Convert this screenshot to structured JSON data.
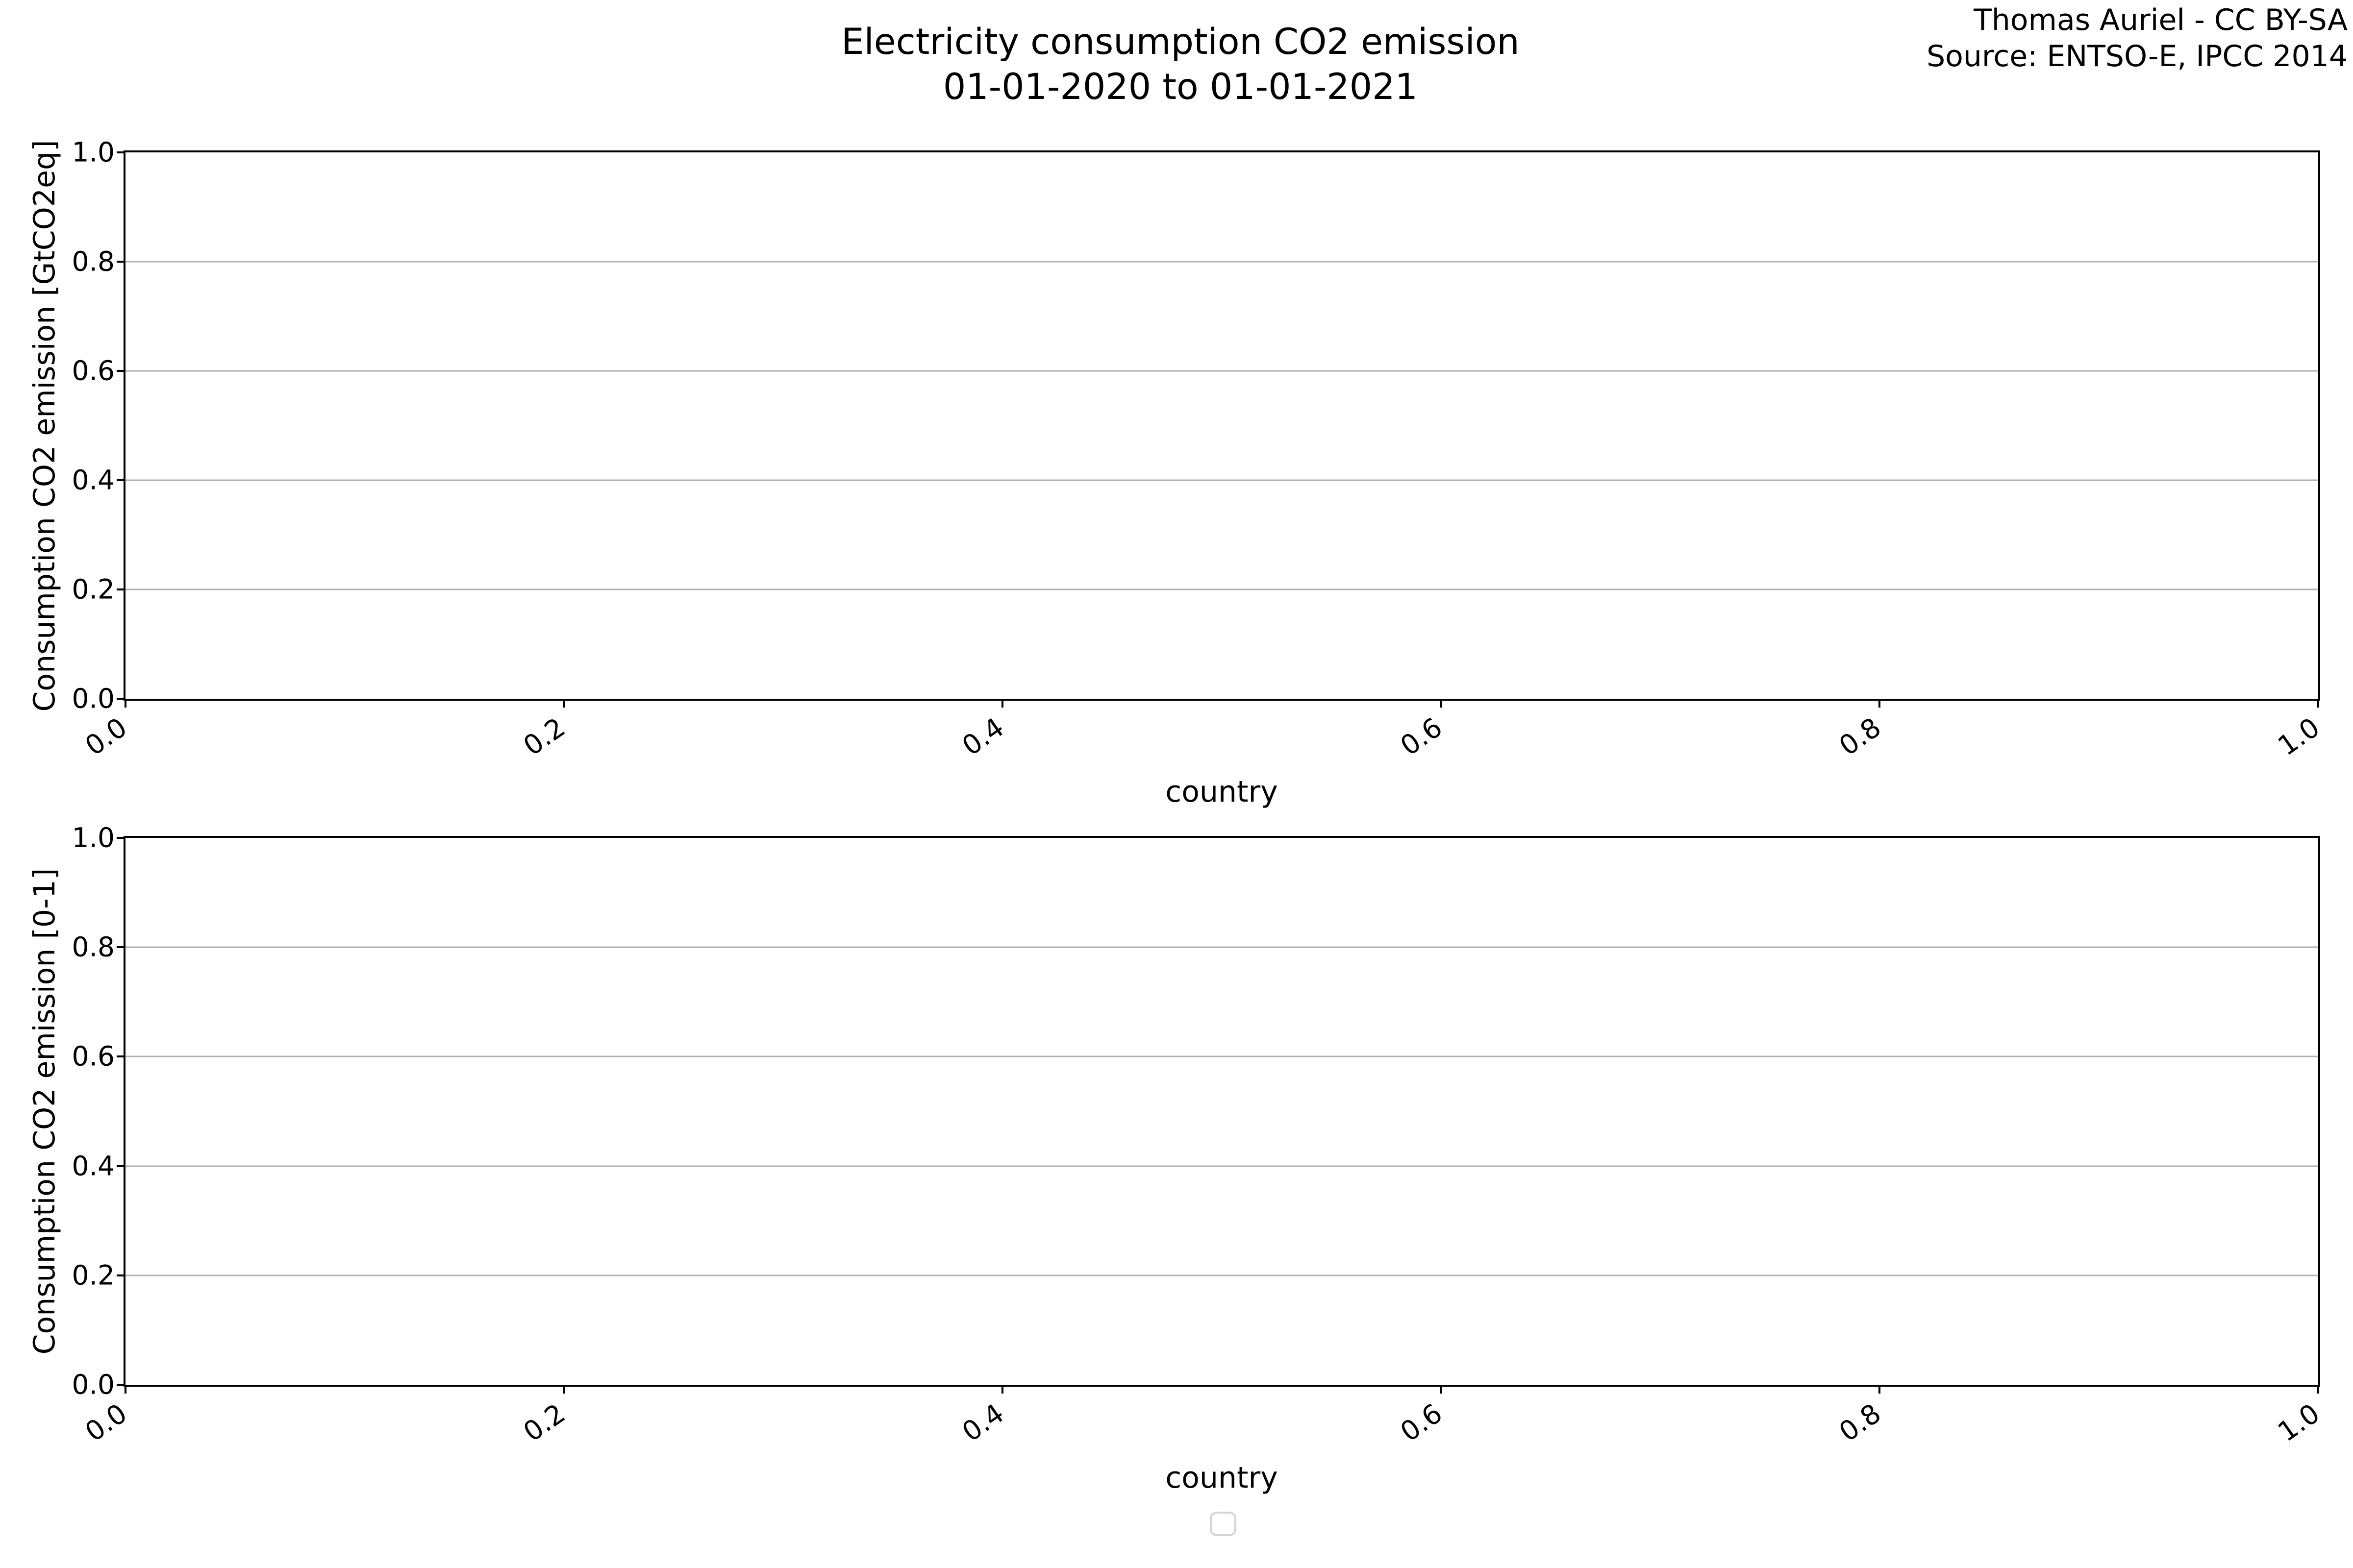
{
  "figure": {
    "title": {
      "line1": "Electricity consumption CO2 emission",
      "line2": "01-01-2020 to 01-01-2021"
    },
    "credit": {
      "line1": "Thomas Auriel - CC BY-SA",
      "line2": "Source: ENTSO-E, IPCC 2014"
    }
  },
  "colors": {
    "background": "#ffffff",
    "spine": "#000000",
    "grid": "#b0b0b0",
    "text": "#000000",
    "legend_border": "#d4d4d4"
  },
  "legend": {
    "entries": []
  },
  "chart_data": [
    {
      "type": "bar",
      "title": "Electricity consumption CO2 emission 01-01-2020 to 01-01-2021",
      "xlabel": "country",
      "ylabel": "Consumption CO2 emission [GtCO2eq]",
      "xlim": [
        0.0,
        1.0
      ],
      "ylim": [
        0.0,
        1.0
      ],
      "xticks": [
        "0.0",
        "0.2",
        "0.4",
        "0.6",
        "0.8",
        "1.0"
      ],
      "yticks": [
        "0.0",
        "0.2",
        "0.4",
        "0.6",
        "0.8",
        "1.0"
      ],
      "xtick_rotation_deg": 35,
      "grid": "horizontal",
      "legend_position": "none",
      "categories": [],
      "series": [],
      "note": "axes are empty - no data plotted"
    },
    {
      "type": "bar",
      "title": "",
      "xlabel": "country",
      "ylabel": "Consumption CO2 emission [0-1]",
      "xlim": [
        0.0,
        1.0
      ],
      "ylim": [
        0.0,
        1.0
      ],
      "xticks": [
        "0.0",
        "0.2",
        "0.4",
        "0.6",
        "0.8",
        "1.0"
      ],
      "yticks": [
        "0.0",
        "0.2",
        "0.4",
        "0.6",
        "0.8",
        "1.0"
      ],
      "xtick_rotation_deg": 35,
      "grid": "horizontal",
      "legend_position": "below-figure-empty-box",
      "categories": [],
      "series": [],
      "note": "axes are empty - no data plotted"
    }
  ]
}
